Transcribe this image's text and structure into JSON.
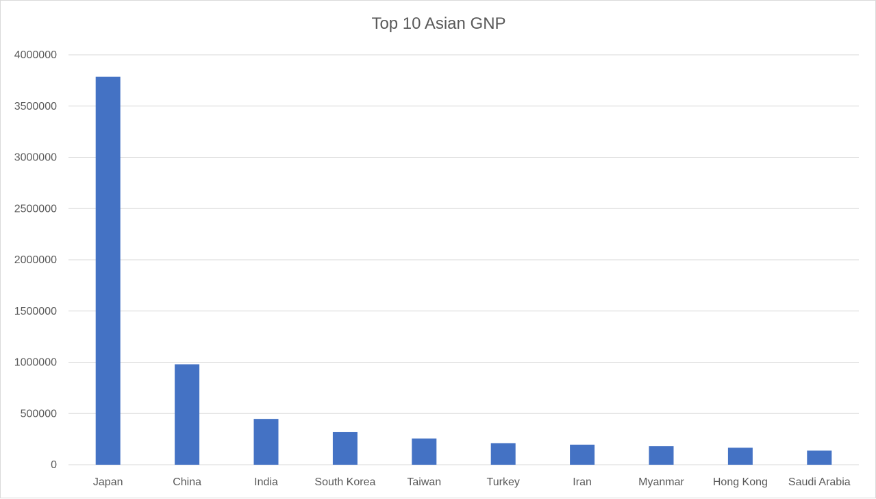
{
  "chart_data": {
    "type": "bar",
    "title": "Top 10 Asian GNP",
    "xlabel": "",
    "ylabel": "",
    "categories": [
      "Japan",
      "China",
      "India",
      "South Korea",
      "Taiwan",
      "Turkey",
      "Iran",
      "Myanmar",
      "Hong Kong",
      "Saudi Arabia"
    ],
    "values": [
      3787042,
      980227,
      447114,
      320749,
      256254,
      210721,
      195746,
      180375,
      166448,
      137635
    ],
    "ylim": [
      0,
      4000000
    ],
    "yticks": [
      "0",
      "500000",
      "1000000",
      "1500000",
      "2000000",
      "2500000",
      "3000000",
      "3500000",
      "4000000"
    ],
    "grid": true,
    "legend": "none",
    "bar_color": "#4472C4"
  }
}
